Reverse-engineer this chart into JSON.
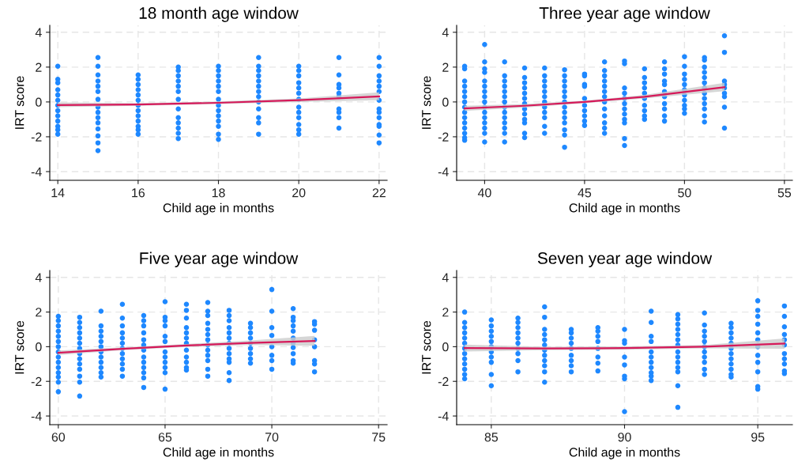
{
  "chart_data": [
    {
      "type": "scatter",
      "title": "18 month age window",
      "xlabel": "Child age in months",
      "ylabel": "IRT score",
      "xlim": [
        13.8,
        22.2
      ],
      "xticks": [
        14,
        16,
        18,
        20,
        22
      ],
      "ylim": [
        -4.5,
        4.4
      ],
      "yticks": [
        -4,
        -2,
        0,
        2,
        4
      ],
      "grid": true,
      "marker": "circle",
      "series": [
        {
          "color": "#1e88ff",
          "x": [
            14,
            14,
            14,
            14,
            14,
            14,
            14,
            14,
            14,
            14,
            14,
            14,
            14,
            15,
            15,
            15,
            15,
            15,
            15,
            15,
            15,
            15,
            15,
            15,
            15,
            15,
            15,
            15,
            16,
            16,
            16,
            16,
            16,
            16,
            16,
            16,
            16,
            16,
            16,
            16,
            16,
            17,
            17,
            17,
            17,
            17,
            17,
            17,
            17,
            17,
            17,
            17,
            17,
            17,
            18,
            18,
            18,
            18,
            18,
            18,
            18,
            18,
            18,
            18,
            18,
            18,
            18,
            18,
            19,
            19,
            19,
            19,
            19,
            19,
            19,
            19,
            19,
            19,
            19,
            19,
            19,
            20,
            20,
            20,
            20,
            20,
            20,
            20,
            20,
            20,
            20,
            20,
            20,
            20,
            21,
            21,
            21,
            21,
            21,
            21,
            21,
            21,
            21,
            21,
            22,
            22,
            22,
            22,
            22,
            22,
            22,
            22,
            22,
            22,
            22,
            22,
            22,
            22
          ],
          "values": [
            2.05,
            1.3,
            1.1,
            0.7,
            0.4,
            0.1,
            -0.2,
            -0.5,
            -0.8,
            -1.1,
            -1.4,
            -1.6,
            -1.85,
            2.55,
            2.05,
            1.55,
            1.2,
            0.9,
            0.6,
            0.15,
            -0.3,
            -0.6,
            -0.9,
            -1.2,
            -1.55,
            -1.95,
            -2.35,
            -2.8,
            1.55,
            1.3,
            1.0,
            0.7,
            0.4,
            0.1,
            -0.2,
            -0.5,
            -0.8,
            -1.1,
            -1.4,
            -1.6,
            -1.85,
            2.0,
            1.8,
            1.5,
            1.2,
            0.9,
            0.6,
            0.15,
            -0.4,
            -0.9,
            -1.2,
            -1.5,
            -1.8,
            -2.1,
            2.05,
            1.8,
            1.5,
            1.2,
            0.9,
            0.6,
            0.15,
            -0.2,
            -0.5,
            -0.8,
            -1.1,
            -1.4,
            -1.85,
            -2.15,
            2.55,
            2.05,
            1.8,
            1.5,
            1.2,
            0.9,
            0.6,
            0.3,
            0.0,
            -0.4,
            -0.9,
            -1.2,
            -1.85,
            2.05,
            1.8,
            1.5,
            1.1,
            0.8,
            0.5,
            0.15,
            -0.3,
            -0.6,
            -0.9,
            -1.3,
            -1.6,
            -1.85,
            2.55,
            1.55,
            1.0,
            0.8,
            0.5,
            0.3,
            -0.4,
            -0.6,
            -0.9,
            -1.5,
            2.55,
            2.05,
            1.5,
            1.2,
            0.9,
            0.6,
            0.1,
            -0.4,
            -0.6,
            -0.9,
            -1.3,
            -1.4,
            -1.9,
            -2.35
          ]
        },
        {
          "type": "line",
          "marker": "none",
          "color": "#d6195a",
          "x": [
            14,
            16,
            18,
            20,
            22
          ],
          "values": [
            -0.18,
            -0.15,
            -0.05,
            0.1,
            0.32
          ],
          "lower": [
            -0.3,
            -0.22,
            -0.12,
            0.0,
            0.1
          ],
          "upper": [
            -0.03,
            -0.07,
            0.03,
            0.2,
            0.55
          ]
        }
      ]
    },
    {
      "type": "scatter",
      "title": "Three year age window",
      "xlabel": "Child age in months",
      "ylabel": "IRT score",
      "xlim": [
        38.6,
        55.4
      ],
      "xticks": [
        40,
        45,
        50,
        55
      ],
      "ylim": [
        -4.5,
        4.4
      ],
      "yticks": [
        -4,
        -2,
        0,
        2,
        4
      ],
      "grid": true,
      "marker": "circle",
      "series": [
        {
          "color": "#1e88ff",
          "x": [
            39,
            39,
            39,
            39,
            39,
            39,
            39,
            39,
            39,
            39,
            39,
            39,
            39,
            39,
            39,
            40,
            40,
            40,
            40,
            40,
            40,
            40,
            40,
            40,
            40,
            40,
            40,
            40,
            40,
            40,
            40,
            41,
            41,
            41,
            41,
            41,
            41,
            41,
            41,
            41,
            41,
            41,
            41,
            41,
            41,
            42,
            42,
            42,
            42,
            42,
            42,
            42,
            42,
            42,
            42,
            42,
            42,
            42,
            43,
            43,
            43,
            43,
            43,
            43,
            43,
            43,
            43,
            43,
            43,
            43,
            44,
            44,
            44,
            44,
            44,
            44,
            44,
            44,
            44,
            44,
            44,
            44,
            44,
            44,
            45,
            45,
            45,
            45,
            45,
            45,
            45,
            45,
            45,
            45,
            46,
            46,
            46,
            46,
            46,
            46,
            46,
            46,
            46,
            46,
            46,
            46,
            46,
            47,
            47,
            47,
            47,
            47,
            47,
            47,
            47,
            47,
            47,
            47,
            47,
            48,
            48,
            48,
            48,
            48,
            48,
            48,
            48,
            48,
            48,
            49,
            49,
            49,
            49,
            49,
            49,
            49,
            49,
            49,
            49,
            49,
            50,
            50,
            50,
            50,
            50,
            50,
            50,
            50,
            50,
            50,
            50,
            51,
            51,
            51,
            51,
            51,
            51,
            51,
            51,
            51,
            51,
            51,
            51,
            51,
            52,
            52,
            52,
            52,
            52,
            52,
            52,
            52,
            52
          ],
          "values": [
            2.05,
            1.9,
            1.2,
            0.9,
            0.6,
            0.3,
            0.0,
            -0.3,
            -0.6,
            -0.9,
            -1.2,
            -1.5,
            -1.8,
            -2.05,
            -2.2,
            3.3,
            2.3,
            1.9,
            1.7,
            1.2,
            0.9,
            0.6,
            0.3,
            0.0,
            -0.3,
            -0.6,
            -0.9,
            -1.2,
            -1.5,
            -1.8,
            -2.3,
            2.3,
            1.5,
            1.2,
            0.9,
            0.6,
            0.3,
            0.0,
            -0.3,
            -0.6,
            -0.9,
            -1.2,
            -1.5,
            -1.8,
            -2.3,
            1.95,
            1.4,
            1.1,
            0.8,
            0.5,
            0.2,
            -0.1,
            -0.4,
            -0.7,
            -1.0,
            -1.2,
            -1.8,
            -2.05,
            1.95,
            1.5,
            1.2,
            0.9,
            0.6,
            0.3,
            0.0,
            -0.3,
            -0.6,
            -0.9,
            -1.4,
            -1.8,
            1.85,
            1.5,
            1.2,
            0.9,
            0.6,
            0.3,
            0.0,
            -0.3,
            -0.6,
            -0.9,
            -1.2,
            -1.6,
            -1.9,
            -2.6,
            1.6,
            1.5,
            1.0,
            0.9,
            0.2,
            -0.2,
            -0.5,
            -0.8,
            -1.1,
            -1.35,
            2.3,
            1.8,
            1.5,
            1.2,
            0.9,
            0.6,
            0.3,
            0.0,
            -0.4,
            -0.8,
            -1.2,
            -1.5,
            -1.8,
            2.35,
            2.2,
            0.8,
            0.5,
            0.2,
            -0.1,
            -0.4,
            -0.7,
            -1.0,
            -1.2,
            -2.1,
            -2.5,
            1.9,
            1.4,
            1.1,
            0.8,
            0.5,
            0.2,
            -0.2,
            -0.5,
            -0.8,
            -1.0,
            2.3,
            1.9,
            1.6,
            1.2,
            1.0,
            0.6,
            0.3,
            -0.1,
            -0.4,
            -0.8,
            -1.1,
            2.6,
            2.05,
            1.6,
            1.3,
            1.0,
            0.7,
            0.4,
            0.1,
            -0.2,
            -0.4,
            -0.65,
            2.55,
            2.4,
            2.0,
            1.7,
            1.4,
            1.1,
            0.8,
            0.5,
            0.2,
            -0.1,
            -0.4,
            -0.8,
            -1.15,
            3.8,
            2.85,
            1.2,
            1.0,
            0.8,
            0.5,
            0.3,
            -0.3,
            -1.5
          ]
        },
        {
          "type": "line",
          "marker": "none",
          "color": "#d6195a",
          "x": [
            39,
            42,
            45,
            48,
            52
          ],
          "values": [
            -0.37,
            -0.22,
            0.0,
            0.3,
            0.85
          ],
          "lower": [
            -0.52,
            -0.32,
            -0.07,
            0.2,
            0.62
          ],
          "upper": [
            -0.22,
            -0.12,
            0.07,
            0.4,
            1.1
          ]
        }
      ]
    },
    {
      "type": "scatter",
      "title": "Five year age window",
      "xlabel": "Child age in months",
      "ylabel": "IRT score",
      "xlim": [
        59.6,
        75.4
      ],
      "xticks": [
        60,
        65,
        70,
        75
      ],
      "ylim": [
        -4.5,
        4.4
      ],
      "yticks": [
        -4,
        -2,
        0,
        2,
        4
      ],
      "grid": true,
      "marker": "circle",
      "series": [
        {
          "color": "#1e88ff",
          "x": [
            60,
            60,
            60,
            60,
            60,
            60,
            60,
            60,
            60,
            60,
            60,
            60,
            60,
            60,
            60,
            61,
            61,
            61,
            61,
            61,
            61,
            61,
            61,
            61,
            61,
            61,
            61,
            61,
            61,
            62,
            62,
            62,
            62,
            62,
            62,
            62,
            62,
            62,
            62,
            62,
            62,
            63,
            63,
            63,
            63,
            63,
            63,
            63,
            63,
            63,
            63,
            63,
            63,
            64,
            64,
            64,
            64,
            64,
            64,
            64,
            64,
            64,
            64,
            64,
            64,
            64,
            65,
            65,
            65,
            65,
            65,
            65,
            65,
            65,
            65,
            65,
            65,
            65,
            66,
            66,
            66,
            66,
            66,
            66,
            66,
            66,
            66,
            66,
            66,
            66,
            67,
            67,
            67,
            67,
            67,
            67,
            67,
            67,
            67,
            67,
            67,
            67,
            67,
            68,
            68,
            68,
            68,
            68,
            68,
            68,
            68,
            68,
            68,
            68,
            68,
            68,
            69,
            69,
            69,
            69,
            69,
            69,
            69,
            69,
            69,
            70,
            70,
            70,
            70,
            70,
            70,
            70,
            70,
            71,
            71,
            71,
            71,
            71,
            71,
            71,
            71,
            71,
            71,
            71,
            72,
            72,
            72,
            72,
            72,
            72,
            72,
            72
          ],
          "values": [
            1.75,
            1.5,
            1.2,
            0.9,
            0.6,
            0.3,
            0.0,
            -0.3,
            -0.6,
            -0.9,
            -1.2,
            -1.5,
            -1.75,
            -2.05,
            -2.6,
            1.7,
            1.4,
            1.1,
            0.8,
            0.5,
            0.2,
            -0.1,
            -0.4,
            -0.7,
            -1.0,
            -1.3,
            -1.7,
            -2.05,
            -2.85,
            2.05,
            1.2,
            0.9,
            0.6,
            0.3,
            0.0,
            -0.3,
            -0.6,
            -0.9,
            -1.2,
            -1.5,
            -1.75,
            2.45,
            1.65,
            1.2,
            0.8,
            0.5,
            0.2,
            -0.1,
            -0.4,
            -0.7,
            -1.0,
            -1.3,
            -1.7,
            1.8,
            1.5,
            1.2,
            0.8,
            0.4,
            0.1,
            -0.2,
            -0.6,
            -0.9,
            -1.2,
            -1.5,
            -1.8,
            -2.35,
            2.6,
            1.7,
            1.5,
            1.2,
            0.6,
            0.3,
            -0.3,
            -0.6,
            -0.9,
            -1.2,
            -1.5,
            -2.45,
            2.45,
            2.1,
            1.65,
            1.1,
            0.8,
            0.5,
            0.2,
            -0.2,
            -0.6,
            -0.9,
            -1.2,
            -1.35,
            2.55,
            2.05,
            1.8,
            1.35,
            1.0,
            0.7,
            0.4,
            0.1,
            -0.2,
            -0.5,
            -0.8,
            -1.3,
            -1.7,
            2.1,
            1.8,
            1.5,
            1.1,
            0.8,
            0.5,
            0.2,
            -0.1,
            -0.4,
            -0.7,
            -0.9,
            -1.5,
            -1.95,
            1.35,
            1.1,
            0.8,
            0.5,
            0.2,
            -0.1,
            -0.4,
            -0.7,
            -0.95,
            3.3,
            2.05,
            1.1,
            0.65,
            0.0,
            -0.5,
            -0.8,
            -1.3,
            2.2,
            1.7,
            1.5,
            1.2,
            0.9,
            0.5,
            0.2,
            -0.05,
            -0.4,
            -0.8,
            -0.95,
            1.45,
            1.3,
            0.95,
            0.4,
            0.0,
            -0.8,
            -1.0,
            -1.45
          ]
        },
        {
          "type": "line",
          "marker": "none",
          "color": "#d6195a",
          "x": [
            60,
            63,
            66,
            69,
            72
          ],
          "values": [
            -0.35,
            -0.12,
            0.07,
            0.22,
            0.33
          ],
          "lower": [
            -0.48,
            -0.2,
            -0.02,
            0.1,
            0.05
          ],
          "upper": [
            -0.22,
            -0.04,
            0.16,
            0.36,
            0.62
          ]
        }
      ]
    },
    {
      "type": "scatter",
      "title": "Seven year age window",
      "xlabel": "Child age in months",
      "ylabel": "IRT score",
      "xlim": [
        83.7,
        96.3
      ],
      "xticks": [
        85,
        90,
        95
      ],
      "ylim": [
        -4.5,
        4.4
      ],
      "yticks": [
        -4,
        -2,
        0,
        2,
        4
      ],
      "grid": true,
      "marker": "circle",
      "series": [
        {
          "color": "#1e88ff",
          "x": [
            84,
            84,
            84,
            84,
            84,
            84,
            84,
            84,
            84,
            84,
            84,
            84,
            84,
            85,
            85,
            85,
            85,
            85,
            85,
            85,
            85,
            85,
            85,
            85,
            86,
            86,
            86,
            86,
            86,
            86,
            86,
            86,
            86,
            86,
            87,
            87,
            87,
            87,
            87,
            87,
            87,
            87,
            87,
            87,
            87,
            87,
            88,
            88,
            88,
            88,
            88,
            88,
            88,
            88,
            88,
            89,
            89,
            89,
            89,
            89,
            89,
            89,
            89,
            90,
            90,
            90,
            90,
            90,
            90,
            90,
            90,
            91,
            91,
            91,
            91,
            91,
            91,
            91,
            91,
            91,
            91,
            91,
            92,
            92,
            92,
            92,
            92,
            92,
            92,
            92,
            92,
            92,
            92,
            92,
            92,
            92,
            93,
            93,
            93,
            93,
            93,
            93,
            93,
            93,
            93,
            93,
            93,
            94,
            94,
            94,
            94,
            94,
            94,
            94,
            94,
            94,
            94,
            94,
            94,
            95,
            95,
            95,
            95,
            95,
            95,
            95,
            95,
            95,
            95,
            95,
            95,
            96,
            96,
            96,
            96,
            96,
            96,
            96,
            96,
            96,
            96,
            96
          ],
          "values": [
            2.0,
            1.4,
            1.1,
            0.8,
            0.5,
            0.2,
            -0.1,
            -0.4,
            -0.7,
            -1.0,
            -1.3,
            -1.6,
            -1.85,
            1.55,
            1.2,
            0.9,
            0.6,
            0.3,
            0.0,
            -0.3,
            -0.6,
            -0.9,
            -1.6,
            -2.25,
            1.65,
            1.4,
            1.1,
            0.8,
            0.5,
            0.2,
            -0.1,
            -0.4,
            -0.8,
            -1.45,
            2.3,
            1.7,
            1.0,
            0.7,
            0.4,
            0.1,
            -0.2,
            -0.5,
            -0.8,
            -1.1,
            -1.45,
            -2.05,
            1.0,
            0.8,
            0.5,
            0.2,
            -0.1,
            -0.5,
            -0.8,
            -1.1,
            -1.45,
            1.1,
            0.9,
            0.6,
            0.3,
            -0.1,
            -0.6,
            -0.95,
            -1.4,
            1.0,
            0.35,
            0.2,
            -0.6,
            -1.05,
            -1.7,
            -1.85,
            -3.75,
            2.05,
            1.4,
            0.6,
            0.3,
            -0.3,
            -0.6,
            -0.9,
            -1.2,
            -1.5,
            -1.7,
            -1.95,
            1.85,
            1.6,
            1.3,
            1.0,
            0.7,
            0.4,
            0.1,
            -0.3,
            -0.6,
            -0.9,
            -1.2,
            -1.45,
            -2.25,
            -3.5,
            1.95,
            1.25,
            0.9,
            0.6,
            0.3,
            0.0,
            -0.3,
            -0.6,
            -0.9,
            -1.3,
            -1.6,
            1.35,
            1.1,
            0.8,
            0.5,
            0.2,
            -0.1,
            -0.4,
            -0.7,
            -1.0,
            -1.3,
            -1.6,
            -1.75,
            2.65,
            2.1,
            1.75,
            1.3,
            0.8,
            0.4,
            0.0,
            -0.5,
            -0.9,
            -1.45,
            -2.3,
            -2.45,
            2.35,
            1.75,
            1.15,
            0.7,
            0.4,
            0.1,
            -0.4,
            -0.7,
            -1.0,
            -1.4,
            -1.55
          ]
        },
        {
          "type": "line",
          "marker": "none",
          "color": "#d6195a",
          "x": [
            84,
            87,
            90,
            93,
            96
          ],
          "values": [
            -0.08,
            -0.1,
            -0.08,
            0.0,
            0.18
          ],
          "lower": [
            -0.28,
            -0.2,
            -0.17,
            -0.1,
            -0.12
          ],
          "upper": [
            0.12,
            0.0,
            0.02,
            0.1,
            0.48
          ]
        }
      ]
    }
  ]
}
